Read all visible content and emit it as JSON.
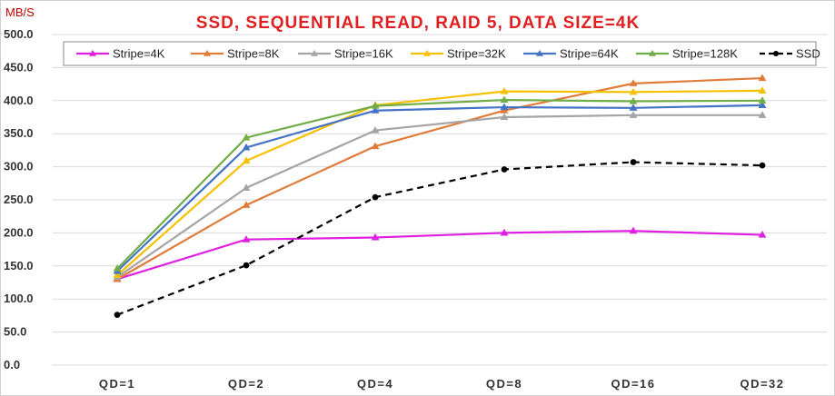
{
  "chart_data": {
    "type": "line",
    "title": "SSD, SEQUENTIAL READ, RAID 5, DATA SIZE=4K",
    "ylabel": "MB/S",
    "xlabel": "",
    "categories": [
      "QD=1",
      "QD=2",
      "QD=4",
      "QD=8",
      "QD=16",
      "QD=32"
    ],
    "ylim": [
      0,
      500
    ],
    "yticks": [
      "0.0",
      "50.0",
      "100.0",
      "150.0",
      "200.0",
      "250.0",
      "300.0",
      "350.0",
      "400.0",
      "450.0",
      "500.0"
    ],
    "grid": true,
    "legend_position": "top",
    "series": [
      {
        "name": "Stripe=4K",
        "color": "#e020e0",
        "marker": "triangle",
        "dash": false,
        "values": [
          130,
          190,
          193,
          200,
          203,
          197
        ]
      },
      {
        "name": "Stripe=8K",
        "color": "#e07b39",
        "marker": "triangle",
        "dash": false,
        "values": [
          130,
          242,
          331,
          385,
          426,
          434
        ]
      },
      {
        "name": "Stripe=16K",
        "color": "#a5a5a5",
        "marker": "triangle",
        "dash": false,
        "values": [
          133,
          268,
          355,
          375,
          378,
          378
        ]
      },
      {
        "name": "Stripe=32K",
        "color": "#f5c000",
        "marker": "triangle",
        "dash": false,
        "values": [
          136,
          309,
          393,
          414,
          413,
          415
        ]
      },
      {
        "name": "Stripe=64K",
        "color": "#4472c4",
        "marker": "triangle",
        "dash": false,
        "values": [
          142,
          329,
          385,
          390,
          389,
          393
        ]
      },
      {
        "name": "Stripe=128K",
        "color": "#70ad47",
        "marker": "triangle",
        "dash": false,
        "values": [
          146,
          344,
          392,
          401,
          399,
          400
        ]
      },
      {
        "name": "SSD",
        "color": "#000000",
        "marker": "circle",
        "dash": true,
        "values": [
          76,
          151,
          254,
          296,
          307,
          302
        ]
      }
    ]
  }
}
